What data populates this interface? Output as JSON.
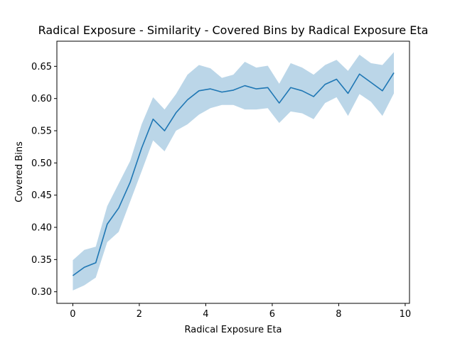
{
  "chart_data": {
    "type": "line",
    "title": "Radical Exposure - Similarity - Covered Bins by Radical Exposure Eta",
    "xlabel": "Radical Exposure Eta",
    "ylabel": "Covered Bins",
    "xlim": [
      -0.48,
      10.13
    ],
    "ylim": [
      0.282,
      0.689
    ],
    "x_ticks": [
      0,
      2,
      4,
      6,
      8,
      10
    ],
    "x_tick_labels": [
      "0",
      "2",
      "4",
      "6",
      "8",
      "10"
    ],
    "y_ticks": [
      0.3,
      0.35,
      0.4,
      0.45,
      0.5,
      0.55,
      0.6,
      0.65
    ],
    "y_tick_labels": [
      "0.30",
      "0.35",
      "0.40",
      "0.45",
      "0.50",
      "0.55",
      "0.60",
      "0.65"
    ],
    "grid": false,
    "line_color": "#1f77b4",
    "band_color": "#1f77b4",
    "series": [
      {
        "x": [
          0.0,
          0.345,
          0.69,
          1.035,
          1.38,
          1.725,
          2.07,
          2.415,
          2.76,
          3.105,
          3.45,
          3.795,
          4.14,
          4.485,
          4.83,
          5.175,
          5.52,
          5.865,
          6.21,
          6.555,
          6.9,
          7.245,
          7.59,
          7.935,
          8.28,
          8.625,
          8.97,
          9.315,
          9.66
        ],
        "values": [
          0.325,
          0.338,
          0.345,
          0.405,
          0.43,
          0.47,
          0.523,
          0.568,
          0.55,
          0.578,
          0.598,
          0.612,
          0.615,
          0.61,
          0.613,
          0.62,
          0.615,
          0.617,
          0.593,
          0.617,
          0.612,
          0.603,
          0.622,
          0.63,
          0.608,
          0.638,
          0.625,
          0.612,
          0.64
        ],
        "lower": [
          0.302,
          0.31,
          0.322,
          0.377,
          0.393,
          0.44,
          0.487,
          0.535,
          0.518,
          0.55,
          0.56,
          0.575,
          0.585,
          0.59,
          0.59,
          0.583,
          0.583,
          0.585,
          0.562,
          0.58,
          0.577,
          0.568,
          0.593,
          0.602,
          0.573,
          0.607,
          0.595,
          0.573,
          0.608
        ],
        "upper": [
          0.349,
          0.365,
          0.37,
          0.433,
          0.468,
          0.503,
          0.56,
          0.602,
          0.583,
          0.607,
          0.637,
          0.652,
          0.647,
          0.632,
          0.637,
          0.657,
          0.648,
          0.651,
          0.623,
          0.655,
          0.648,
          0.637,
          0.652,
          0.66,
          0.643,
          0.668,
          0.655,
          0.652,
          0.672
        ]
      }
    ]
  }
}
